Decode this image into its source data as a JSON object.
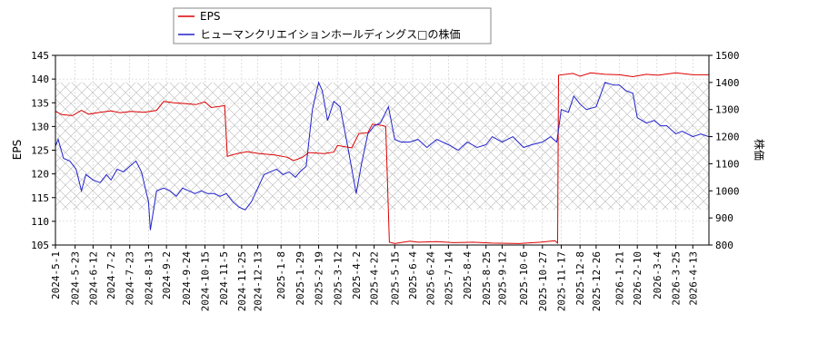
{
  "chart_data": {
    "type": "line",
    "legend": {
      "position": "top-left",
      "entries": [
        {
          "label": "EPS",
          "color": "#dd0000"
        },
        {
          "label": "ヒューマンクリエイションホールディングス□の株価",
          "color": "#2222cc"
        }
      ]
    },
    "xlabel": "",
    "ylabel_left": "EPS",
    "ylabel_right": "株価",
    "ylim_left": [
      105,
      145
    ],
    "ylim_right": [
      800,
      1500
    ],
    "yticks_left": [
      "105",
      "110",
      "115",
      "120",
      "125",
      "130",
      "135",
      "140",
      "145"
    ],
    "yticks_right": [
      "800",
      "900",
      "1000",
      "1100",
      "1200",
      "1300",
      "1400",
      "1500"
    ],
    "x_range": [
      "2024-05-01",
      "2026-05-01"
    ],
    "x_ticks": [
      "2024-5-1",
      "2024-5-23",
      "2024-6-12",
      "2024-7-2",
      "2024-7-23",
      "2024-8-13",
      "2024-9-2",
      "2024-9-24",
      "2024-10-15",
      "2024-11-5",
      "2024-11-25",
      "2024-12-13",
      "2025-1-8",
      "2025-1-29",
      "2025-2-19",
      "2025-3-12",
      "2025-4-2",
      "2025-4-22",
      "2025-5-15",
      "2025-6-4",
      "2025-6-24",
      "2025-7-14",
      "2025-8-4",
      "2025-8-25",
      "2025-9-12",
      "2025-10-6",
      "2025-10-27",
      "2025-11-17",
      "2025-12-8",
      "2025-12-26",
      "2026-1-21",
      "2026-2-10",
      "2026-3-4",
      "2026-3-25",
      "2026-4-13"
    ],
    "grid": true,
    "shaded_range": {
      "axis": "right",
      "from": 930,
      "to": 1400
    },
    "series": [
      {
        "name": "EPS",
        "axis": "left",
        "color": "#dd0000",
        "points": [
          [
            "2024-05-01",
            133.2
          ],
          [
            "2024-05-08",
            132.5
          ],
          [
            "2024-05-20",
            132.3
          ],
          [
            "2024-05-30",
            133.4
          ],
          [
            "2024-06-07",
            132.6
          ],
          [
            "2024-06-20",
            133.0
          ],
          [
            "2024-07-02",
            133.3
          ],
          [
            "2024-07-12",
            132.9
          ],
          [
            "2024-07-25",
            133.2
          ],
          [
            "2024-08-08",
            133.0
          ],
          [
            "2024-08-22",
            133.4
          ],
          [
            "2024-08-30",
            135.3
          ],
          [
            "2024-09-10",
            135.0
          ],
          [
            "2024-09-24",
            134.8
          ],
          [
            "2024-10-05",
            134.6
          ],
          [
            "2024-10-15",
            135.2
          ],
          [
            "2024-10-22",
            134.0
          ],
          [
            "2024-11-06",
            134.4
          ],
          [
            "2024-11-09",
            123.7
          ],
          [
            "2024-11-20",
            124.3
          ],
          [
            "2024-12-01",
            124.7
          ],
          [
            "2024-12-15",
            124.3
          ],
          [
            "2025-01-01",
            124.0
          ],
          [
            "2025-01-15",
            123.5
          ],
          [
            "2025-01-22",
            122.8
          ],
          [
            "2025-02-01",
            123.5
          ],
          [
            "2025-02-08",
            124.5
          ],
          [
            "2025-02-25",
            124.3
          ],
          [
            "2025-03-08",
            124.6
          ],
          [
            "2025-03-12",
            126.0
          ],
          [
            "2025-03-28",
            125.5
          ],
          [
            "2025-04-05",
            128.5
          ],
          [
            "2025-04-15",
            128.7
          ],
          [
            "2025-04-20",
            130.5
          ],
          [
            "2025-05-01",
            130.2
          ],
          [
            "2025-05-05",
            130.0
          ],
          [
            "2025-05-09",
            105.6
          ],
          [
            "2025-05-15",
            105.3
          ],
          [
            "2025-06-01",
            105.8
          ],
          [
            "2025-06-10",
            105.6
          ],
          [
            "2025-07-01",
            105.7
          ],
          [
            "2025-07-20",
            105.5
          ],
          [
            "2025-08-10",
            105.6
          ],
          [
            "2025-09-01",
            105.4
          ],
          [
            "2025-10-01",
            105.3
          ],
          [
            "2025-10-25",
            105.6
          ],
          [
            "2025-11-10",
            105.9
          ],
          [
            "2025-11-13",
            105.4
          ],
          [
            "2025-11-14",
            140.8
          ],
          [
            "2025-11-30",
            141.2
          ],
          [
            "2025-12-08",
            140.6
          ],
          [
            "2025-12-20",
            141.3
          ],
          [
            "2026-01-05",
            141.0
          ],
          [
            "2026-01-21",
            140.9
          ],
          [
            "2026-02-05",
            140.5
          ],
          [
            "2026-02-20",
            141.0
          ],
          [
            "2026-03-05",
            140.8
          ],
          [
            "2026-03-25",
            141.3
          ],
          [
            "2026-04-13",
            140.9
          ],
          [
            "2026-05-01",
            140.9
          ]
        ]
      },
      {
        "name": "ヒューマンクリエイションホールディングス□の株価",
        "axis": "right",
        "color": "#2222cc",
        "points": [
          [
            "2024-05-01",
            1165
          ],
          [
            "2024-05-04",
            1190
          ],
          [
            "2024-05-10",
            1120
          ],
          [
            "2024-05-17",
            1110
          ],
          [
            "2024-05-24",
            1080
          ],
          [
            "2024-05-30",
            1000
          ],
          [
            "2024-06-04",
            1060
          ],
          [
            "2024-06-12",
            1040
          ],
          [
            "2024-06-20",
            1030
          ],
          [
            "2024-06-27",
            1060
          ],
          [
            "2024-07-02",
            1040
          ],
          [
            "2024-07-09",
            1080
          ],
          [
            "2024-07-16",
            1070
          ],
          [
            "2024-07-23",
            1090
          ],
          [
            "2024-07-30",
            1110
          ],
          [
            "2024-08-05",
            1070
          ],
          [
            "2024-08-13",
            960
          ],
          [
            "2024-08-15",
            855
          ],
          [
            "2024-08-22",
            1000
          ],
          [
            "2024-08-30",
            1010
          ],
          [
            "2024-09-06",
            1000
          ],
          [
            "2024-09-13",
            980
          ],
          [
            "2024-09-20",
            1010
          ],
          [
            "2024-09-27",
            1000
          ],
          [
            "2024-10-04",
            990
          ],
          [
            "2024-10-11",
            1000
          ],
          [
            "2024-10-18",
            990
          ],
          [
            "2024-10-25",
            990
          ],
          [
            "2024-11-01",
            980
          ],
          [
            "2024-11-08",
            990
          ],
          [
            "2024-11-15",
            960
          ],
          [
            "2024-11-22",
            940
          ],
          [
            "2024-11-29",
            930
          ],
          [
            "2024-12-06",
            960
          ],
          [
            "2024-12-13",
            1010
          ],
          [
            "2024-12-20",
            1060
          ],
          [
            "2024-12-27",
            1070
          ],
          [
            "2025-01-03",
            1080
          ],
          [
            "2025-01-10",
            1060
          ],
          [
            "2025-01-17",
            1070
          ],
          [
            "2025-01-24",
            1050
          ],
          [
            "2025-01-29",
            1070
          ],
          [
            "2025-02-05",
            1090
          ],
          [
            "2025-02-12",
            1300
          ],
          [
            "2025-02-19",
            1400
          ],
          [
            "2025-02-23",
            1370
          ],
          [
            "2025-03-01",
            1260
          ],
          [
            "2025-03-08",
            1330
          ],
          [
            "2025-03-15",
            1310
          ],
          [
            "2025-03-22",
            1190
          ],
          [
            "2025-03-27",
            1100
          ],
          [
            "2025-04-02",
            990
          ],
          [
            "2025-04-08",
            1100
          ],
          [
            "2025-04-15",
            1210
          ],
          [
            "2025-04-22",
            1240
          ],
          [
            "2025-04-29",
            1250
          ],
          [
            "2025-05-08",
            1310
          ],
          [
            "2025-05-15",
            1190
          ],
          [
            "2025-05-22",
            1180
          ],
          [
            "2025-06-01",
            1180
          ],
          [
            "2025-06-10",
            1190
          ],
          [
            "2025-06-20",
            1160
          ],
          [
            "2025-07-01",
            1190
          ],
          [
            "2025-07-14",
            1170
          ],
          [
            "2025-07-25",
            1150
          ],
          [
            "2025-08-04",
            1180
          ],
          [
            "2025-08-15",
            1160
          ],
          [
            "2025-08-25",
            1170
          ],
          [
            "2025-09-01",
            1200
          ],
          [
            "2025-09-12",
            1180
          ],
          [
            "2025-09-24",
            1200
          ],
          [
            "2025-10-06",
            1160
          ],
          [
            "2025-10-15",
            1170
          ],
          [
            "2025-10-27",
            1180
          ],
          [
            "2025-11-05",
            1200
          ],
          [
            "2025-11-12",
            1180
          ],
          [
            "2025-11-17",
            1300
          ],
          [
            "2025-11-25",
            1290
          ],
          [
            "2025-12-01",
            1350
          ],
          [
            "2025-12-08",
            1320
          ],
          [
            "2025-12-15",
            1300
          ],
          [
            "2025-12-26",
            1310
          ],
          [
            "2026-01-05",
            1400
          ],
          [
            "2026-01-15",
            1390
          ],
          [
            "2026-01-21",
            1390
          ],
          [
            "2026-01-28",
            1370
          ],
          [
            "2026-02-05",
            1360
          ],
          [
            "2026-02-10",
            1270
          ],
          [
            "2026-02-20",
            1250
          ],
          [
            "2026-03-01",
            1260
          ],
          [
            "2026-03-08",
            1240
          ],
          [
            "2026-03-15",
            1240
          ],
          [
            "2026-03-25",
            1210
          ],
          [
            "2026-04-01",
            1220
          ],
          [
            "2026-04-13",
            1200
          ],
          [
            "2026-04-22",
            1210
          ],
          [
            "2026-05-01",
            1200
          ]
        ]
      }
    ]
  }
}
